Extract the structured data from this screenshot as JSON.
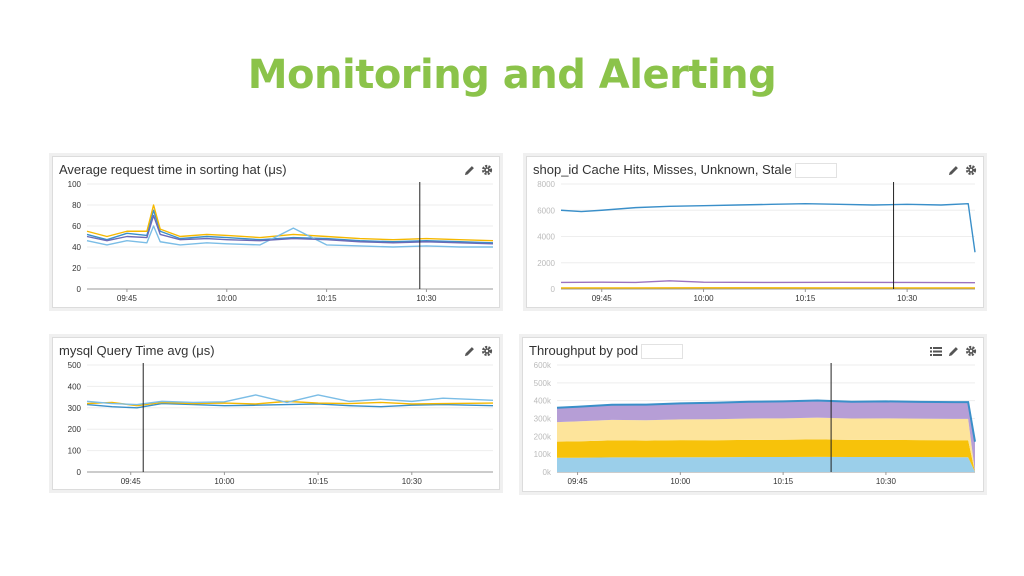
{
  "slide": {
    "title": "Monitoring and Alerting"
  },
  "colors": {
    "title_green": "#8bc34a",
    "blue": "#3a8fc9",
    "lightblue": "#7bbde6",
    "yellow": "#f5b800",
    "purple": "#9b72c2",
    "lightpurple": "#b69ed6",
    "cream": "#fde49b",
    "gold": "#f7c20a",
    "marker": "#222222"
  },
  "icons": [
    "pencil-icon",
    "gear-icon",
    "list-icon"
  ],
  "panels": [
    {
      "title": "Average request time in sorting hat (μs)",
      "has_list_icon": false
    },
    {
      "title": "shop_id Cache Hits, Misses, Unknown, Stale",
      "has_list_icon": false
    },
    {
      "title": "mysql Query Time avg (μs)",
      "has_list_icon": false
    },
    {
      "title": "Throughput by pod",
      "has_list_icon": true
    }
  ],
  "chart_data": [
    {
      "type": "line",
      "title": "Average request time in sorting hat (μs)",
      "x_ticks": [
        "09:45",
        "10:00",
        "10:15",
        "10:30"
      ],
      "y_ticks": [
        "0",
        "20",
        "40",
        "60",
        "80",
        "100"
      ],
      "ylim": [
        0,
        100
      ],
      "x_domain": [
        "09:39",
        "10:40"
      ],
      "marker_time": "10:29",
      "series": [
        {
          "color": "#3a8fc9",
          "x": [
            "09:39",
            "09:42",
            "09:45",
            "09:48",
            "09:49",
            "09:50",
            "09:53",
            "09:57",
            "10:00",
            "10:05",
            "10:10",
            "10:15",
            "10:20",
            "10:25",
            "10:30",
            "10:35",
            "10:40"
          ],
          "y": [
            52,
            47,
            53,
            51,
            75,
            55,
            48,
            50,
            49,
            47,
            49,
            48,
            46,
            45,
            46,
            45,
            44
          ]
        },
        {
          "color": "#f5b800",
          "x": [
            "09:39",
            "09:42",
            "09:45",
            "09:48",
            "09:49",
            "09:50",
            "09:53",
            "09:57",
            "10:00",
            "10:05",
            "10:10",
            "10:15",
            "10:20",
            "10:25",
            "10:30",
            "10:35",
            "10:40"
          ],
          "y": [
            55,
            50,
            55,
            55,
            80,
            57,
            50,
            52,
            51,
            49,
            52,
            50,
            48,
            47,
            48,
            47,
            46
          ]
        },
        {
          "color": "#7bbde6",
          "x": [
            "09:39",
            "09:42",
            "09:45",
            "09:48",
            "09:49",
            "09:50",
            "09:53",
            "09:57",
            "10:00",
            "10:05",
            "10:10",
            "10:15",
            "10:20",
            "10:25",
            "10:30",
            "10:35",
            "10:40"
          ],
          "y": [
            46,
            42,
            46,
            44,
            60,
            45,
            42,
            44,
            43,
            42,
            58,
            42,
            41,
            40,
            41,
            40,
            40
          ]
        },
        {
          "color": "#6b6bb8",
          "x": [
            "09:39",
            "09:42",
            "09:45",
            "09:48",
            "09:49",
            "09:50",
            "09:53",
            "09:57",
            "10:00",
            "10:05",
            "10:10",
            "10:15",
            "10:20",
            "10:25",
            "10:30",
            "10:35",
            "10:40"
          ],
          "y": [
            50,
            46,
            50,
            49,
            70,
            52,
            47,
            48,
            47,
            46,
            48,
            47,
            45,
            44,
            45,
            44,
            43
          ]
        }
      ]
    },
    {
      "type": "line",
      "title": "shop_id Cache Hits, Misses, Unknown, Stale",
      "x_ticks": [
        "09:45",
        "10:00",
        "10:15",
        "10:30"
      ],
      "y_ticks": [
        "0",
        "2000",
        "4000",
        "6000",
        "8000"
      ],
      "ylim": [
        0,
        8000
      ],
      "x_domain": [
        "09:39",
        "10:40"
      ],
      "marker_time": "10:28",
      "series": [
        {
          "color": "#3a8fc9",
          "x": [
            "09:39",
            "09:42",
            "09:45",
            "09:50",
            "09:55",
            "10:00",
            "10:05",
            "10:10",
            "10:15",
            "10:20",
            "10:25",
            "10:30",
            "10:35",
            "10:39",
            "10:40"
          ],
          "y": [
            6000,
            5900,
            6000,
            6200,
            6300,
            6350,
            6400,
            6450,
            6500,
            6450,
            6400,
            6450,
            6400,
            6500,
            2800
          ]
        },
        {
          "color": "#9b72c2",
          "x": [
            "09:39",
            "09:45",
            "09:50",
            "09:55",
            "10:00",
            "10:10",
            "10:20",
            "10:30",
            "10:40"
          ],
          "y": [
            500,
            520,
            500,
            620,
            520,
            500,
            510,
            500,
            480
          ]
        },
        {
          "color": "#f5b800",
          "x": [
            "09:39",
            "09:50",
            "10:00",
            "10:20",
            "10:40"
          ],
          "y": [
            80,
            80,
            90,
            80,
            80
          ]
        }
      ]
    },
    {
      "type": "line",
      "title": "mysql Query Time avg (μs)",
      "x_ticks": [
        "09:45",
        "10:00",
        "10:15",
        "10:30"
      ],
      "y_ticks": [
        "0",
        "100",
        "200",
        "300",
        "400",
        "500"
      ],
      "ylim": [
        0,
        500
      ],
      "x_domain": [
        "09:38",
        "10:43"
      ],
      "marker_time": "09:47",
      "series": [
        {
          "color": "#3a8fc9",
          "x": [
            "09:38",
            "09:42",
            "09:46",
            "09:50",
            "09:55",
            "10:00",
            "10:05",
            "10:10",
            "10:15",
            "10:20",
            "10:25",
            "10:30",
            "10:35",
            "10:43"
          ],
          "y": [
            315,
            305,
            300,
            320,
            315,
            310,
            312,
            315,
            318,
            310,
            305,
            312,
            315,
            310
          ]
        },
        {
          "color": "#f5b800",
          "x": [
            "09:38",
            "09:42",
            "09:46",
            "09:50",
            "09:55",
            "10:00",
            "10:05",
            "10:10",
            "10:15",
            "10:20",
            "10:25",
            "10:30",
            "10:35",
            "10:43"
          ],
          "y": [
            320,
            325,
            310,
            325,
            320,
            322,
            318,
            330,
            322,
            320,
            325,
            318,
            320,
            322
          ]
        },
        {
          "color": "#7bbde6",
          "x": [
            "09:38",
            "09:42",
            "09:46",
            "09:50",
            "09:55",
            "10:00",
            "10:05",
            "10:10",
            "10:15",
            "10:20",
            "10:25",
            "10:30",
            "10:35",
            "10:43"
          ],
          "y": [
            330,
            320,
            315,
            330,
            325,
            328,
            360,
            325,
            360,
            330,
            340,
            330,
            345,
            335
          ]
        }
      ]
    },
    {
      "type": "area",
      "title": "Throughput by pod",
      "x_ticks": [
        "09:45",
        "10:00",
        "10:15",
        "10:30"
      ],
      "y_ticks": [
        "0k",
        "100k",
        "200k",
        "300k",
        "400k",
        "500k",
        "600k"
      ],
      "ylim": [
        0,
        600
      ],
      "x_domain": [
        "09:42",
        "10:43"
      ],
      "marker_time": "10:22",
      "x": [
        "09:42",
        "09:45",
        "09:50",
        "09:55",
        "10:00",
        "10:05",
        "10:10",
        "10:15",
        "10:20",
        "10:25",
        "10:30",
        "10:35",
        "10:40",
        "10:42",
        "10:43"
      ],
      "series": [
        {
          "name": "",
          "color": "#9bcfea",
          "values": [
            80,
            80,
            82,
            82,
            83,
            83,
            84,
            84,
            85,
            84,
            84,
            84,
            83,
            83,
            0
          ]
        },
        {
          "name": "",
          "color": "#f7c20a",
          "values": [
            90,
            92,
            95,
            94,
            96,
            95,
            96,
            97,
            98,
            96,
            96,
            95,
            95,
            95,
            0
          ]
        },
        {
          "name": "",
          "color": "#fde49b",
          "values": [
            110,
            112,
            115,
            114,
            116,
            118,
            120,
            120,
            122,
            120,
            121,
            120,
            120,
            120,
            0
          ]
        },
        {
          "name": "",
          "color": "#b69ed6",
          "values": [
            80,
            82,
            85,
            88,
            90,
            92,
            94,
            95,
            96,
            94,
            95,
            94,
            94,
            94,
            170
          ]
        }
      ],
      "top_line_color": "#3a8fc9"
    }
  ]
}
